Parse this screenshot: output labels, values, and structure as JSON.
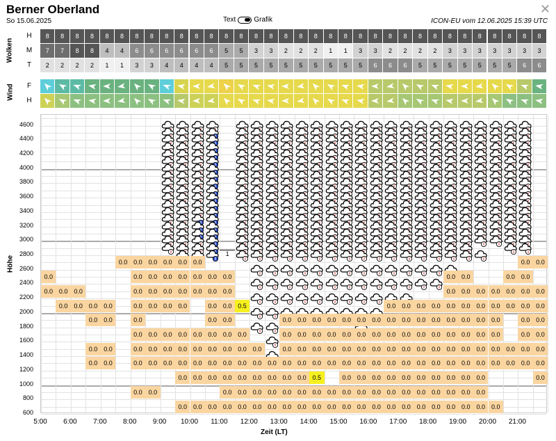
{
  "header": {
    "title": "Berner Oberland",
    "date": "So 15.06.2025",
    "model": "ICON-EU vom 12.06.2025 15:39 UTC",
    "close_icon": "close-icon"
  },
  "toggle": {
    "left": "Text",
    "right": "Grafik"
  },
  "labels": {
    "wolken": "Wolken",
    "wind": "Wind",
    "hoehe": "Höhe",
    "zeit": "Zeit (LT)"
  },
  "cloud_rows": {
    "H": [
      8,
      8,
      8,
      8,
      8,
      8,
      8,
      8,
      8,
      8,
      8,
      8,
      8,
      8,
      8,
      8,
      8,
      8,
      8,
      8,
      8,
      8,
      8,
      8,
      8,
      8,
      8,
      8,
      8,
      8,
      8,
      8,
      8,
      8
    ],
    "M": [
      7,
      7,
      8,
      8,
      4,
      4,
      6,
      6,
      6,
      6,
      6,
      6,
      5,
      5,
      3,
      3,
      2,
      2,
      2,
      1,
      1,
      3,
      3,
      2,
      2,
      2,
      2,
      3,
      3,
      3,
      3,
      3,
      3,
      3
    ],
    "T": [
      2,
      2,
      2,
      2,
      1,
      1,
      3,
      3,
      4,
      4,
      4,
      4,
      5,
      5,
      5,
      5,
      5,
      5,
      5,
      5,
      5,
      5,
      6,
      6,
      6,
      5,
      5,
      5,
      5,
      5,
      5,
      5,
      6,
      6
    ]
  },
  "wind_rows": {
    "F": [
      "#5ecfda",
      "#5dbba5",
      "#5dbba5",
      "#6ab27f",
      "#6ab27f",
      "#6ab27f",
      "#6ab27f",
      "#6ab27f",
      "#5ecfda",
      "#d8d44e",
      "#e6d94c",
      "#e6d94c",
      "#edd24a",
      "#e6d94c",
      "#e6d94c",
      "#e6d94c",
      "#e6d94c",
      "#e6d94c",
      "#e6d94c",
      "#e6d94c",
      "#e6d94c",
      "#e6d94c",
      "#b7c96a",
      "#b7c96a",
      "#b7c96a",
      "#b7c96a",
      "#b7c96a",
      "#e6d94c",
      "#e6d94c",
      "#e6d94c",
      "#e6d94c",
      "#e6d94c",
      "#b7c96a",
      "#6ab27f"
    ],
    "H": [
      "#cdd256",
      "#a6c774",
      "#8cc081",
      "#8cc081",
      "#8cc081",
      "#8cc081",
      "#8cc081",
      "#8cc081",
      "#8cc081",
      "#b7c96a",
      "#cdd256",
      "#cdd256",
      "#e6d94c",
      "#e6d94c",
      "#e6d94c",
      "#e6d94c",
      "#e6d94c",
      "#e6d94c",
      "#e6d94c",
      "#e6d94c",
      "#e6d94c",
      "#e6d94c",
      "#b7c96a",
      "#b7c96a",
      "#a6c774",
      "#a6c774",
      "#a6c774",
      "#b7c96a",
      "#b7c96a",
      "#b7c96a",
      "#a6c774",
      "#8cc081",
      "#8cc081",
      "#8cc081"
    ]
  },
  "colors": {
    "low": "#fad5a0",
    "max": "#f7f020",
    "arrow": "#ffffff"
  },
  "y_ticks": [
    "4600",
    "4400",
    "4200",
    "4000",
    "3800",
    "3600",
    "3400",
    "3200",
    "3000",
    "2800",
    "2600",
    "2400",
    "2200",
    "2000",
    "1800",
    "1600",
    "1400",
    "1200",
    "1000",
    "800",
    "600"
  ],
  "x_ticks": [
    "5:00",
    "6:00",
    "7:00",
    "8:00",
    "9:00",
    "10:00",
    "11:00",
    "12:00",
    "13:00",
    "14:00",
    "15:00",
    "16:00",
    "17:00",
    "18:00",
    "19:00",
    "20:00",
    "21:00"
  ],
  "value_text": "0.0",
  "peak_values": [
    "0.5",
    "0.5"
  ],
  "ice_label": "1"
}
